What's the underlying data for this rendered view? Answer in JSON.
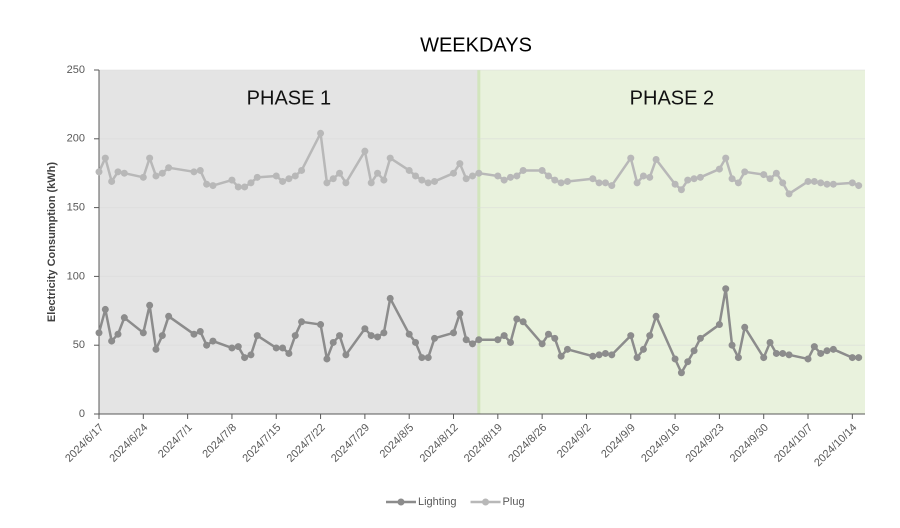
{
  "chart_data": {
    "type": "line",
    "title": "WEEKDAYS",
    "y_label": "Electricity Consumption (kWh)",
    "x": [
      "2024/6/17",
      "2024/6/18",
      "2024/6/19",
      "2024/6/20",
      "2024/6/21",
      "2024/6/24",
      "2024/6/25",
      "2024/6/26",
      "2024/6/27",
      "2024/6/28",
      "2024/7/2",
      "2024/7/3",
      "2024/7/4",
      "2024/7/5",
      "2024/7/8",
      "2024/7/9",
      "2024/7/10",
      "2024/7/11",
      "2024/7/12",
      "2024/7/15",
      "2024/7/16",
      "2024/7/17",
      "2024/7/18",
      "2024/7/19",
      "2024/7/22",
      "2024/7/23",
      "2024/7/24",
      "2024/7/25",
      "2024/7/26",
      "2024/7/29",
      "2024/7/30",
      "2024/7/31",
      "2024/8/1",
      "2024/8/2",
      "2024/8/5",
      "2024/8/6",
      "2024/8/7",
      "2024/8/8",
      "2024/8/9",
      "2024/8/12",
      "2024/8/13",
      "2024/8/14",
      "2024/8/15",
      "2024/8/16",
      "2024/8/19",
      "2024/8/20",
      "2024/8/21",
      "2024/8/22",
      "2024/8/23",
      "2024/8/26",
      "2024/8/27",
      "2024/8/28",
      "2024/8/29",
      "2024/8/30",
      "2024/9/3",
      "2024/9/4",
      "2024/9/5",
      "2024/9/6",
      "2024/9/9",
      "2024/9/10",
      "2024/9/11",
      "2024/9/12",
      "2024/9/13",
      "2024/9/16",
      "2024/9/17",
      "2024/9/18",
      "2024/9/19",
      "2024/9/20",
      "2024/9/23",
      "2024/9/24",
      "2024/9/25",
      "2024/9/26",
      "2024/9/27",
      "2024/9/30",
      "2024/10/1",
      "2024/10/2",
      "2024/10/3",
      "2024/10/4",
      "2024/10/7",
      "2024/10/8",
      "2024/10/9",
      "2024/10/10",
      "2024/10/11",
      "2024/10/14",
      "2024/10/15"
    ],
    "series": [
      {
        "name": "Lighting",
        "color": "#8c8c8c",
        "values": [
          59,
          76,
          53,
          58,
          70,
          59,
          79,
          47,
          57,
          71,
          58,
          60,
          50,
          53,
          48,
          49,
          41,
          43,
          57,
          48,
          48,
          44,
          57,
          67,
          65,
          40,
          52,
          57,
          43,
          62,
          57,
          56,
          59,
          84,
          58,
          52,
          41,
          41,
          55,
          59,
          73,
          54,
          51,
          54,
          54,
          57,
          52,
          69,
          67,
          51,
          58,
          55,
          42,
          47,
          42,
          43,
          44,
          43,
          57,
          41,
          47,
          57,
          71,
          40,
          30,
          38,
          46,
          55,
          65,
          91,
          50,
          41,
          63,
          41,
          52,
          44,
          44,
          43,
          40,
          49,
          44,
          46,
          47,
          41,
          41
        ]
      },
      {
        "name": "Plug",
        "color": "#b8b8b8",
        "values": [
          176,
          186,
          169,
          176,
          175,
          172,
          186,
          173,
          175,
          179,
          176,
          177,
          167,
          166,
          170,
          165,
          165,
          168,
          172,
          173,
          169,
          171,
          173,
          177,
          204,
          168,
          171,
          175,
          168,
          191,
          168,
          175,
          170,
          186,
          177,
          173,
          170,
          168,
          169,
          175,
          182,
          171,
          173,
          175,
          173,
          170,
          172,
          173,
          177,
          177,
          173,
          170,
          168,
          169,
          171,
          168,
          168,
          166,
          186,
          168,
          173,
          172,
          185,
          167,
          163,
          170,
          171,
          172,
          178,
          186,
          171,
          168,
          176,
          174,
          171,
          175,
          168,
          160,
          169,
          169,
          168,
          167,
          167,
          168,
          166
        ]
      }
    ],
    "phases": [
      {
        "label": "PHASE 1",
        "start": "2024/6/17",
        "end": "2024/8/16",
        "color": "#e4e4e4"
      },
      {
        "label": "PHASE 2",
        "start": "2024/8/16",
        "end": "2024/10/16",
        "color": "#e9f2dd"
      }
    ],
    "xlim": [
      "2024/6/17",
      "2024/10/16"
    ],
    "xticks": [
      "2024/6/17",
      "2024/6/24",
      "2024/7/1",
      "2024/7/8",
      "2024/7/15",
      "2024/7/22",
      "2024/7/29",
      "2024/8/5",
      "2024/8/12",
      "2024/8/19",
      "2024/8/26",
      "2024/9/2",
      "2024/9/9",
      "2024/9/16",
      "2024/9/23",
      "2024/9/30",
      "2024/10/7",
      "2024/10/14"
    ],
    "ylim": [
      0,
      250
    ],
    "yticks": [
      0,
      50,
      100,
      150,
      200,
      250
    ],
    "grid": true,
    "legend": "bottom"
  }
}
